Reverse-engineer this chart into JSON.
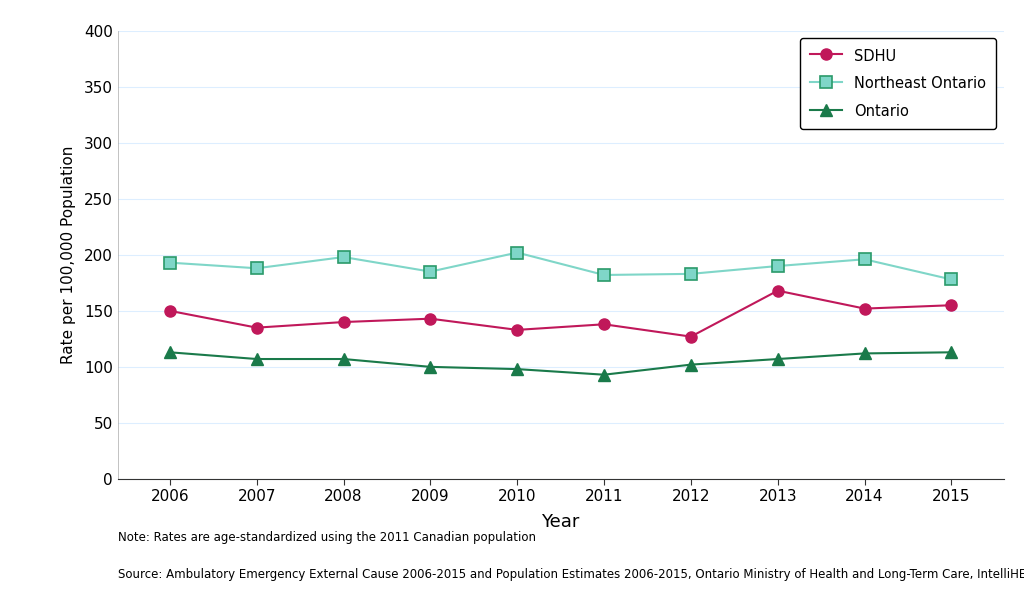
{
  "years": [
    2006,
    2007,
    2008,
    2009,
    2010,
    2011,
    2012,
    2013,
    2014,
    2015
  ],
  "sdhu": [
    150,
    135,
    140,
    143,
    133,
    138,
    127,
    168,
    152,
    155
  ],
  "northeast_ontario": [
    193,
    188,
    198,
    185,
    202,
    182,
    183,
    190,
    196,
    178
  ],
  "ontario": [
    113,
    107,
    107,
    100,
    98,
    93,
    102,
    107,
    112,
    113
  ],
  "sdhu_color": "#c0185a",
  "northeast_color": "#7fd6c8",
  "northeast_edge_color": "#2a9a6a",
  "ontario_color": "#1a7a4a",
  "ylabel": "Rate per 100,000 Population",
  "xlabel": "Year",
  "ylim": [
    0,
    400
  ],
  "yticks": [
    0,
    50,
    100,
    150,
    200,
    250,
    300,
    350,
    400
  ],
  "legend_labels": [
    "SDHU",
    "Northeast Ontario",
    "Ontario"
  ],
  "note1": "Note: Rates are age-standardized using the 2011 Canadian population",
  "note2": "Source: Ambulatory Emergency External Cause 2006-2015 and Population Estimates 2006-2015, Ontario Ministry of Health and Long-Term Care, IntelliHEALTH Ontario",
  "background_color": "#ffffff",
  "grid_color": "#ddeeff"
}
